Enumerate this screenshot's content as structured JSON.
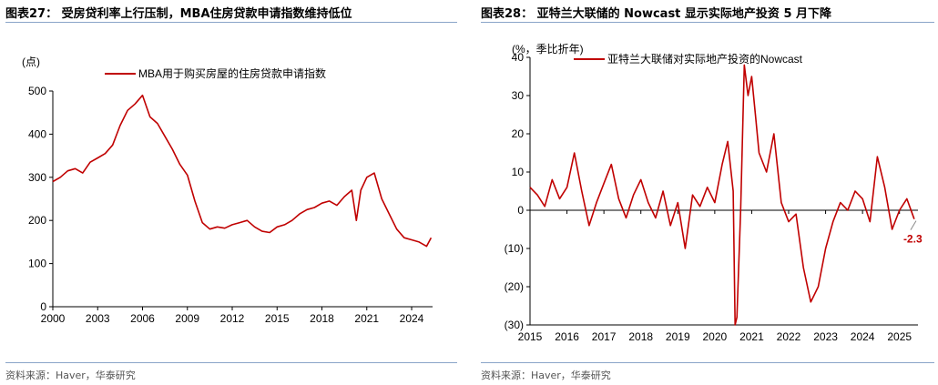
{
  "charts": [
    {
      "title": "图表27：  受房贷利率上行压制，MBA住房贷款申请指数维持低位",
      "source": "资料来源：Haver，华泰研究",
      "unit": "(点)",
      "legend": "MBA用于购买房屋的住房贷款申请指数",
      "line_color": "#c00000"
    },
    {
      "title": "图表28：  亚特兰大联储的 Nowcast 显示实际地产投资 5 月下降",
      "source": "资料来源：Haver，华泰研究",
      "unit": "(%，季比折年)",
      "legend": "亚特兰大联储对实际地产投资的Nowcast",
      "annotation": "-2.3",
      "line_color": "#c00000"
    }
  ],
  "chart_data": [
    {
      "type": "line",
      "title": "",
      "xlabel": "",
      "ylabel": "(点)",
      "ylim": [
        0,
        500
      ],
      "xlim": [
        2000,
        2025.4
      ],
      "y_ticks": [
        "0",
        "100",
        "200",
        "300",
        "400",
        "500"
      ],
      "x_ticks": [
        "2000",
        "2003",
        "2006",
        "2009",
        "2012",
        "2015",
        "2018",
        "2021",
        "2024"
      ],
      "legend_position": "top-center",
      "grid": false,
      "series": [
        {
          "name": "MBA用于购买房屋的住房贷款申请指数",
          "x": [
            2000.0,
            2000.5,
            2001.0,
            2001.5,
            2002.0,
            2002.5,
            2003.0,
            2003.5,
            2004.0,
            2004.5,
            2005.0,
            2005.5,
            2006.0,
            2006.5,
            2007.0,
            2007.5,
            2008.0,
            2008.5,
            2009.0,
            2009.5,
            2010.0,
            2010.5,
            2011.0,
            2011.5,
            2012.0,
            2012.5,
            2013.0,
            2013.5,
            2014.0,
            2014.5,
            2015.0,
            2015.5,
            2016.0,
            2016.5,
            2017.0,
            2017.5,
            2018.0,
            2018.5,
            2019.0,
            2019.5,
            2020.0,
            2020.3,
            2020.6,
            2021.0,
            2021.5,
            2022.0,
            2022.5,
            2023.0,
            2023.5,
            2024.0,
            2024.5,
            2025.0,
            2025.3
          ],
          "values": [
            290,
            300,
            315,
            320,
            310,
            335,
            345,
            355,
            375,
            420,
            455,
            470,
            490,
            440,
            425,
            395,
            365,
            330,
            305,
            245,
            195,
            180,
            185,
            182,
            190,
            195,
            200,
            185,
            175,
            172,
            185,
            190,
            200,
            215,
            225,
            230,
            240,
            245,
            235,
            255,
            270,
            200,
            270,
            300,
            310,
            250,
            215,
            180,
            160,
            155,
            150,
            140,
            160
          ]
        }
      ]
    },
    {
      "type": "line",
      "title": "",
      "xlabel": "",
      "ylabel": "(%，季比折年)",
      "ylim": [
        -30,
        40
      ],
      "xlim": [
        2015,
        2025.5
      ],
      "y_ticks": [
        "40",
        "30",
        "20",
        "10",
        "0",
        "(10)",
        "(20)",
        "(30)"
      ],
      "x_ticks": [
        "2015",
        "2016",
        "2017",
        "2018",
        "2019",
        "2020",
        "2021",
        "2022",
        "2023",
        "2024",
        "2025"
      ],
      "legend_position": "top-center",
      "grid": false,
      "annotations": [
        {
          "text": "-2.3",
          "x": 2025.4,
          "y": -2.3
        }
      ],
      "series": [
        {
          "name": "亚特兰大联储对实际地产投资的Nowcast",
          "x": [
            2015.0,
            2015.2,
            2015.4,
            2015.6,
            2015.8,
            2016.0,
            2016.2,
            2016.4,
            2016.6,
            2016.8,
            2017.0,
            2017.2,
            2017.4,
            2017.6,
            2017.8,
            2018.0,
            2018.2,
            2018.4,
            2018.6,
            2018.8,
            2019.0,
            2019.2,
            2019.4,
            2019.6,
            2019.8,
            2020.0,
            2020.2,
            2020.35,
            2020.5,
            2020.55,
            2020.6,
            2020.7,
            2020.8,
            2020.9,
            2021.0,
            2021.1,
            2021.2,
            2021.4,
            2021.6,
            2021.8,
            2022.0,
            2022.2,
            2022.4,
            2022.6,
            2022.8,
            2023.0,
            2023.2,
            2023.4,
            2023.6,
            2023.8,
            2024.0,
            2024.2,
            2024.4,
            2024.6,
            2024.8,
            2025.0,
            2025.2,
            2025.4
          ],
          "values": [
            6,
            4,
            1,
            8,
            3,
            6,
            15,
            5,
            -4,
            2,
            7,
            12,
            3,
            -2,
            4,
            8,
            2,
            -2,
            5,
            -4,
            2,
            -10,
            4,
            1,
            6,
            2,
            12,
            18,
            5,
            -30,
            -28,
            0,
            38,
            30,
            35,
            25,
            15,
            10,
            20,
            2,
            -3,
            -1,
            -15,
            -24,
            -20,
            -10,
            -3,
            2,
            0,
            5,
            3,
            -3,
            14,
            6,
            -5,
            0,
            3,
            -2.3
          ]
        }
      ]
    }
  ]
}
